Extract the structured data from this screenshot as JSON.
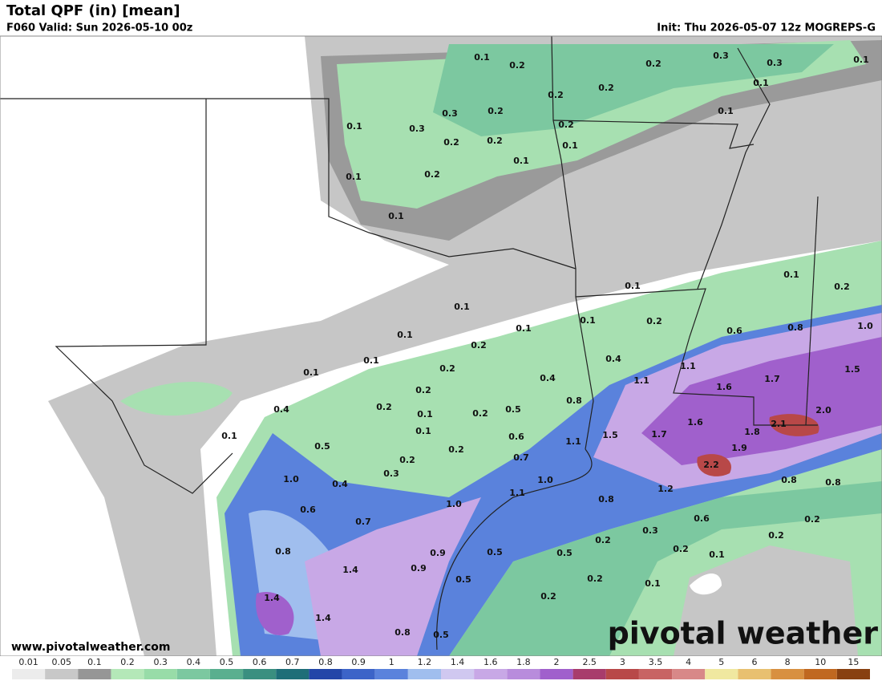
{
  "header": {
    "title": "Total QPF (in) [mean]",
    "valid": "F060 Valid: Sun 2026-05-10 00z",
    "init": "Init: Thu 2026-05-07 12z MOGREPS-G"
  },
  "map": {
    "labels": [
      "0.1",
      "0.2",
      "0.2",
      "0.3",
      "0.3",
      "0.1",
      "0.1",
      "0.2",
      "0.2",
      "0.1",
      "0.3",
      "0.2",
      "0.1",
      "0.3",
      "0.2",
      "0.2",
      "0.2",
      "0.1",
      "0.1",
      "0.1",
      "0.2",
      "0.1",
      "0.1",
      "0.1",
      "0.2",
      "0.1",
      "0.1",
      "0.2",
      "0.6",
      "0.8",
      "1.0",
      "0.1",
      "0.1",
      "0.2",
      "0.1",
      "0.4",
      "1.1",
      "0.2",
      "0.1",
      "0.4",
      "1.1",
      "1.7",
      "1.5",
      "0.2",
      "1.6",
      "0.8",
      "0.2",
      "0.5",
      "0.4",
      "0.1",
      "0.2",
      "2.0",
      "1.6",
      "2.1",
      "0.1",
      "0.6",
      "1.5",
      "1.7",
      "1.8",
      "0.1",
      "1.1",
      "1.9",
      "0.5",
      "0.2",
      "0.7",
      "0.2",
      "2.2",
      "0.3",
      "1.0",
      "1.0",
      "0.4",
      "0.8",
      "0.8",
      "1.2",
      "1.1",
      "0.8",
      "1.0",
      "0.6",
      "0.6",
      "0.2",
      "0.7",
      "0.3",
      "0.2",
      "0.2",
      "0.8",
      "0.5",
      "0.5",
      "0.9",
      "0.2",
      "0.1",
      "0.9",
      "1.4",
      "0.5",
      "0.2",
      "0.1",
      "1.4",
      "0.2",
      "1.4",
      "0.8",
      "0.5"
    ]
  },
  "footer": {
    "website": "www.pivotalweather.com",
    "logo": "pivotal weather"
  },
  "colorbar": {
    "labels": [
      "0.01",
      "0.05",
      "0.1",
      "0.2",
      "0.3",
      "0.4",
      "0.5",
      "0.6",
      "0.7",
      "0.8",
      "0.9",
      "1",
      "1.2",
      "1.4",
      "1.6",
      "1.8",
      "2",
      "2.5",
      "3",
      "3.5",
      "4",
      "5",
      "6",
      "8",
      "10",
      "15"
    ],
    "colors": [
      "#ececec",
      "#c8c8c8",
      "#969696",
      "#b4e8b8",
      "#98dca8",
      "#7cc8a0",
      "#5aaf8f",
      "#3a8f80",
      "#1e6e78",
      "#2346a8",
      "#3c64c8",
      "#5a82dc",
      "#a0beee",
      "#d0c8f0",
      "#c8a8e6",
      "#b88cdc",
      "#a060cc",
      "#a83c6c",
      "#b84848",
      "#c86464",
      "#d88888",
      "#f0e8a0",
      "#e8c070",
      "#d89040",
      "#c06820",
      "#884010"
    ]
  }
}
